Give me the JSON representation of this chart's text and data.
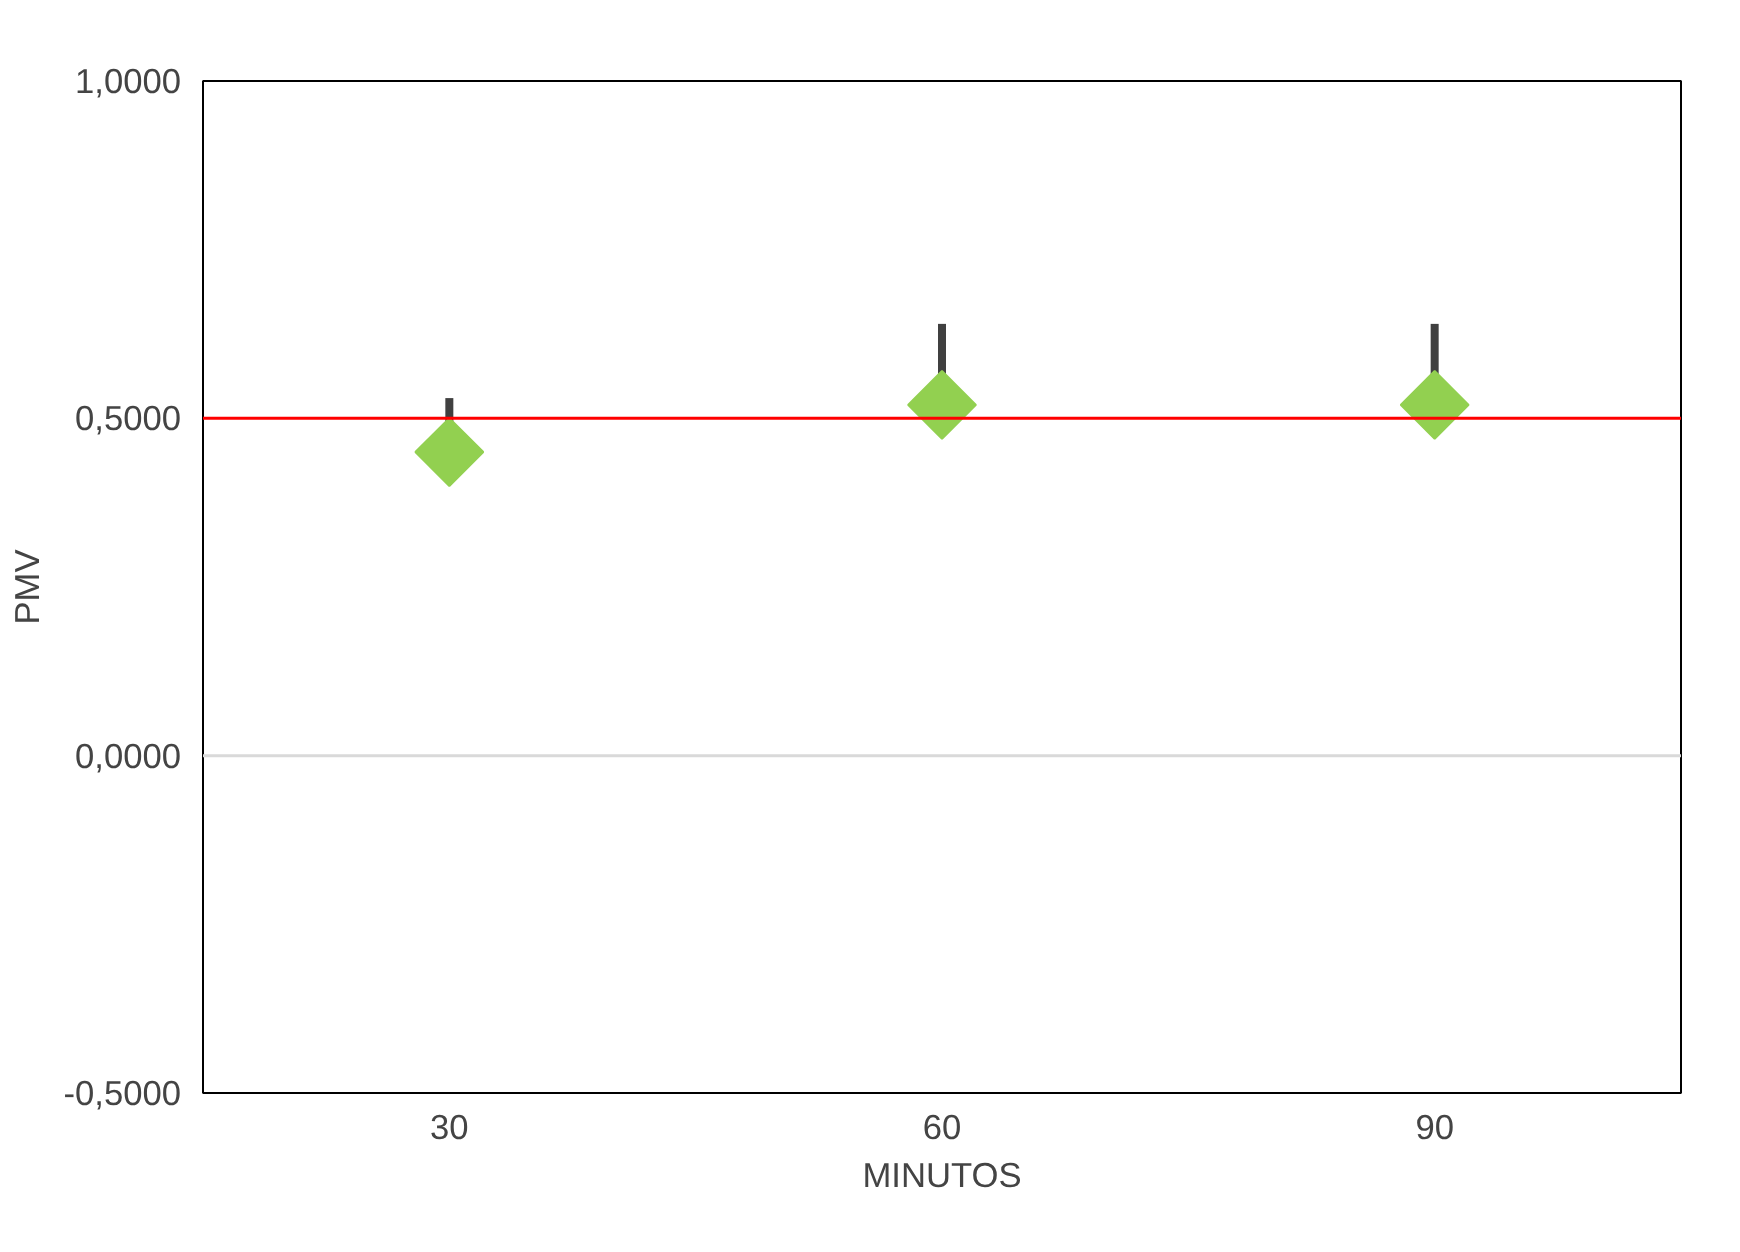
{
  "chart_data": {
    "type": "scatter",
    "xlabel": "MINUTOS",
    "ylabel": "PMV",
    "categories": [
      "30",
      "60",
      "90"
    ],
    "series": [
      {
        "color": "#92d050",
        "values": [
          0.45,
          0.52,
          0.52
        ],
        "errors": [
          [
            0.45,
            0.53
          ],
          [
            0.52,
            0.64
          ],
          [
            0.52,
            0.64
          ]
        ]
      }
    ],
    "ylim": [
      -0.5,
      1.0
    ],
    "yticks": [
      {
        "value": -0.5,
        "label": "-0,5000"
      },
      {
        "value": 0,
        "label": "0,0000"
      },
      {
        "value": 0.5,
        "label": "0,5000"
      },
      {
        "value": 1.0,
        "label": "1,0000"
      }
    ],
    "ref_lines": [
      {
        "axis": "y",
        "value": 0.5,
        "color": "#ff0000",
        "line_style": "solid"
      },
      {
        "axis": "y",
        "value": 0,
        "color": "#d9d9d9",
        "line_style": "solid"
      }
    ],
    "marker": "diamond",
    "grid": false
  }
}
